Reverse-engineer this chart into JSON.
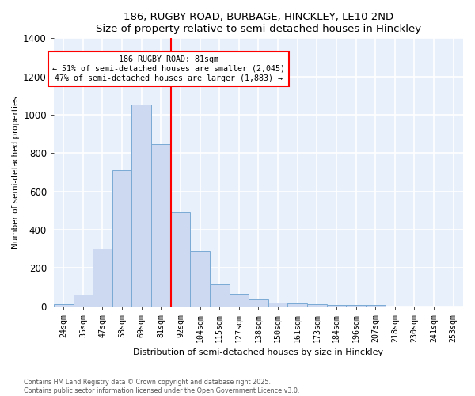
{
  "title1": "186, RUGBY ROAD, BURBAGE, HINCKLEY, LE10 2ND",
  "title2": "Size of property relative to semi-detached houses in Hinckley",
  "xlabel": "Distribution of semi-detached houses by size in Hinckley",
  "ylabel": "Number of semi-detached properties",
  "bar_color": "#ccd9f0",
  "bar_edge_color": "#7aaad4",
  "bg_color": "#e8f0fb",
  "grid_color": "#ffffff",
  "categories": [
    "24sqm",
    "35sqm",
    "47sqm",
    "58sqm",
    "69sqm",
    "81sqm",
    "92sqm",
    "104sqm",
    "115sqm",
    "127sqm",
    "138sqm",
    "150sqm",
    "161sqm",
    "173sqm",
    "184sqm",
    "196sqm",
    "207sqm",
    "218sqm",
    "230sqm",
    "241sqm",
    "253sqm"
  ],
  "values": [
    10,
    60,
    300,
    710,
    1055,
    845,
    490,
    290,
    115,
    65,
    35,
    20,
    15,
    10,
    8,
    5,
    8,
    0,
    0,
    0,
    0
  ],
  "red_line_x": 5.5,
  "annotation_title": "186 RUGBY ROAD: 81sqm",
  "annotation_line1": "← 51% of semi-detached houses are smaller (2,045)",
  "annotation_line2": "47% of semi-detached houses are larger (1,883) →",
  "ylim": [
    0,
    1400
  ],
  "yticks": [
    0,
    200,
    400,
    600,
    800,
    1000,
    1200,
    1400
  ],
  "title_fontsize": 9.5,
  "footnote1": "Contains HM Land Registry data © Crown copyright and database right 2025.",
  "footnote2": "Contains public sector information licensed under the Open Government Licence v3.0."
}
